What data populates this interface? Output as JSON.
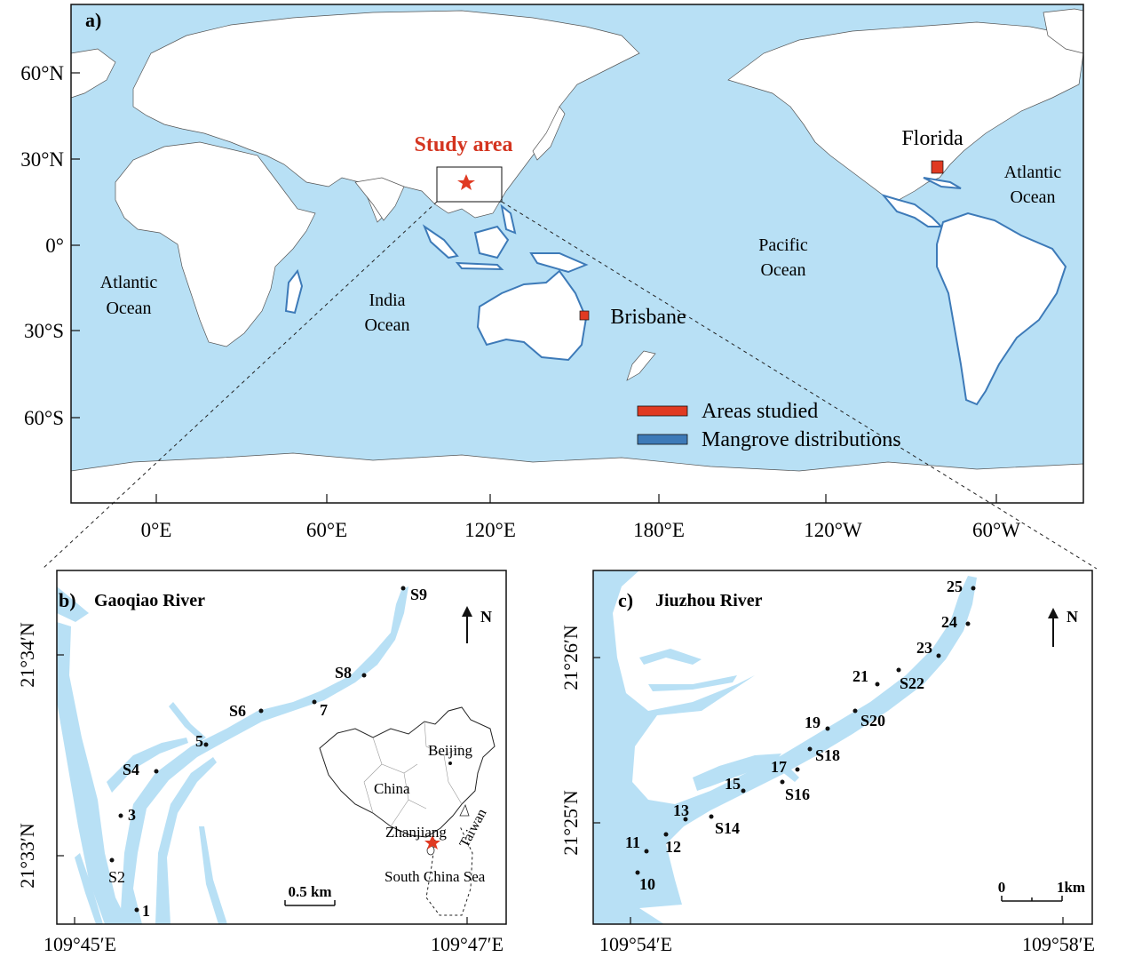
{
  "colors": {
    "ocean": "#b8e0f5",
    "land": "#ffffff",
    "mangrove": "#3d7ab8",
    "studied": "#e03a22",
    "study_label": "#d4341f",
    "river": "#b8e0f5"
  },
  "panel_a": {
    "label": "a)",
    "y_ticks": [
      "60°N",
      "30°N",
      "0°",
      "30°S",
      "60°S"
    ],
    "x_ticks": [
      "0°E",
      "60°E",
      "120°E",
      "180°E",
      "120°W",
      "60°W"
    ],
    "study_area": "Study area",
    "florida": "Florida",
    "brisbane": "Brisbane",
    "oceans": {
      "atlantic_west_1": "Atlantic",
      "atlantic_west_2": "Ocean",
      "india_1": "India",
      "india_2": "Ocean",
      "pacific_1": "Pacific",
      "pacific_2": "Ocean",
      "atlantic_east_1": "Atlantic",
      "atlantic_east_2": "Ocean"
    },
    "legend": {
      "studied": "Areas studied",
      "mangrove": "Mangrove distributions"
    }
  },
  "panel_b": {
    "label": "b)",
    "title": "Gaoqiao River",
    "north": "N",
    "y_ticks": [
      "21°34′N",
      "21°33′N"
    ],
    "x_ticks": [
      "109°45′E",
      "109°47′E"
    ],
    "scale": "0.5 km",
    "sites": [
      "S9",
      "S8",
      "7",
      "S6",
      "5",
      "S4",
      "3",
      "S2",
      "1"
    ],
    "inset": {
      "beijing": "Beijing",
      "china": "China",
      "zhanjiang": "Zhanjiang",
      "taiwan": "Taiwan",
      "scs": "South China Sea"
    }
  },
  "panel_c": {
    "label": "c)",
    "title": "Jiuzhou River",
    "north": "N",
    "y_ticks": [
      "21°26′N",
      "21°25′N"
    ],
    "x_ticks": [
      "109°54′E",
      "109°58′E"
    ],
    "scale_0": "0",
    "scale_1": "1km",
    "sites": [
      "25",
      "24",
      "23",
      "21",
      "S22",
      "19",
      "S20",
      "S18",
      "17",
      "S16",
      "15",
      "13",
      "S14",
      "11",
      "12",
      "10"
    ]
  }
}
